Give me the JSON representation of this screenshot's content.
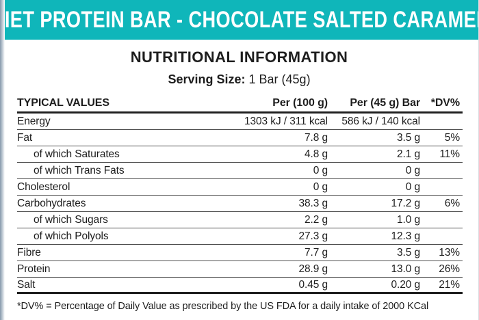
{
  "colors": {
    "banner_bg": "#0fb6ba",
    "banner_text": "#ffffff",
    "body_text": "#1d1d1d",
    "rule_thin": "#4d4d4d",
    "rule_thick": "#1f1f1f"
  },
  "banner": {
    "title": "DIET PROTEIN BAR - CHOCOLATE SALTED CARAMEL"
  },
  "section": {
    "title": "NUTRITIONAL INFORMATION"
  },
  "serving": {
    "label": "Serving Size:",
    "value": "1 Bar (45g)"
  },
  "table": {
    "columns": [
      "TYPICAL VALUES",
      "Per (100 g)",
      "Per (45 g) Bar",
      "*DV%"
    ],
    "rows": [
      {
        "label": "Energy",
        "per100": "1303 kJ / 311 kcal",
        "per45": "586 kJ / 140 kcal",
        "dv": ""
      },
      {
        "label": "Fat",
        "per100": "7.8 g",
        "per45": "3.5 g",
        "dv": "5%"
      },
      {
        "label": "of which Saturates",
        "per100": "4.8 g",
        "per45": "2.1 g",
        "dv": "11%"
      },
      {
        "label": "of which Trans Fats",
        "per100": "0 g",
        "per45": "0 g",
        "dv": ""
      },
      {
        "label": "Cholesterol",
        "per100": "0 g",
        "per45": "0 g",
        "dv": ""
      },
      {
        "label": "Carbohydrates",
        "per100": "38.3 g",
        "per45": "17.2 g",
        "dv": "6%"
      },
      {
        "label": "of which Sugars",
        "per100": "2.2 g",
        "per45": "1.0 g",
        "dv": ""
      },
      {
        "label": "of which Polyols",
        "per100": "27.3 g",
        "per45": "12.3 g",
        "dv": ""
      },
      {
        "label": "Fibre",
        "per100": "7.7 g",
        "per45": "3.5 g",
        "dv": "13%"
      },
      {
        "label": "Protein",
        "per100": "28.9 g",
        "per45": "13.0 g",
        "dv": "26%"
      },
      {
        "label": "Salt",
        "per100": "0.45 g",
        "per45": "0.20 g",
        "dv": "21%"
      }
    ]
  },
  "footnote": "*DV% = Percentage of Daily Value as prescribed by the US FDA for a daily intake of 2000 KCal"
}
